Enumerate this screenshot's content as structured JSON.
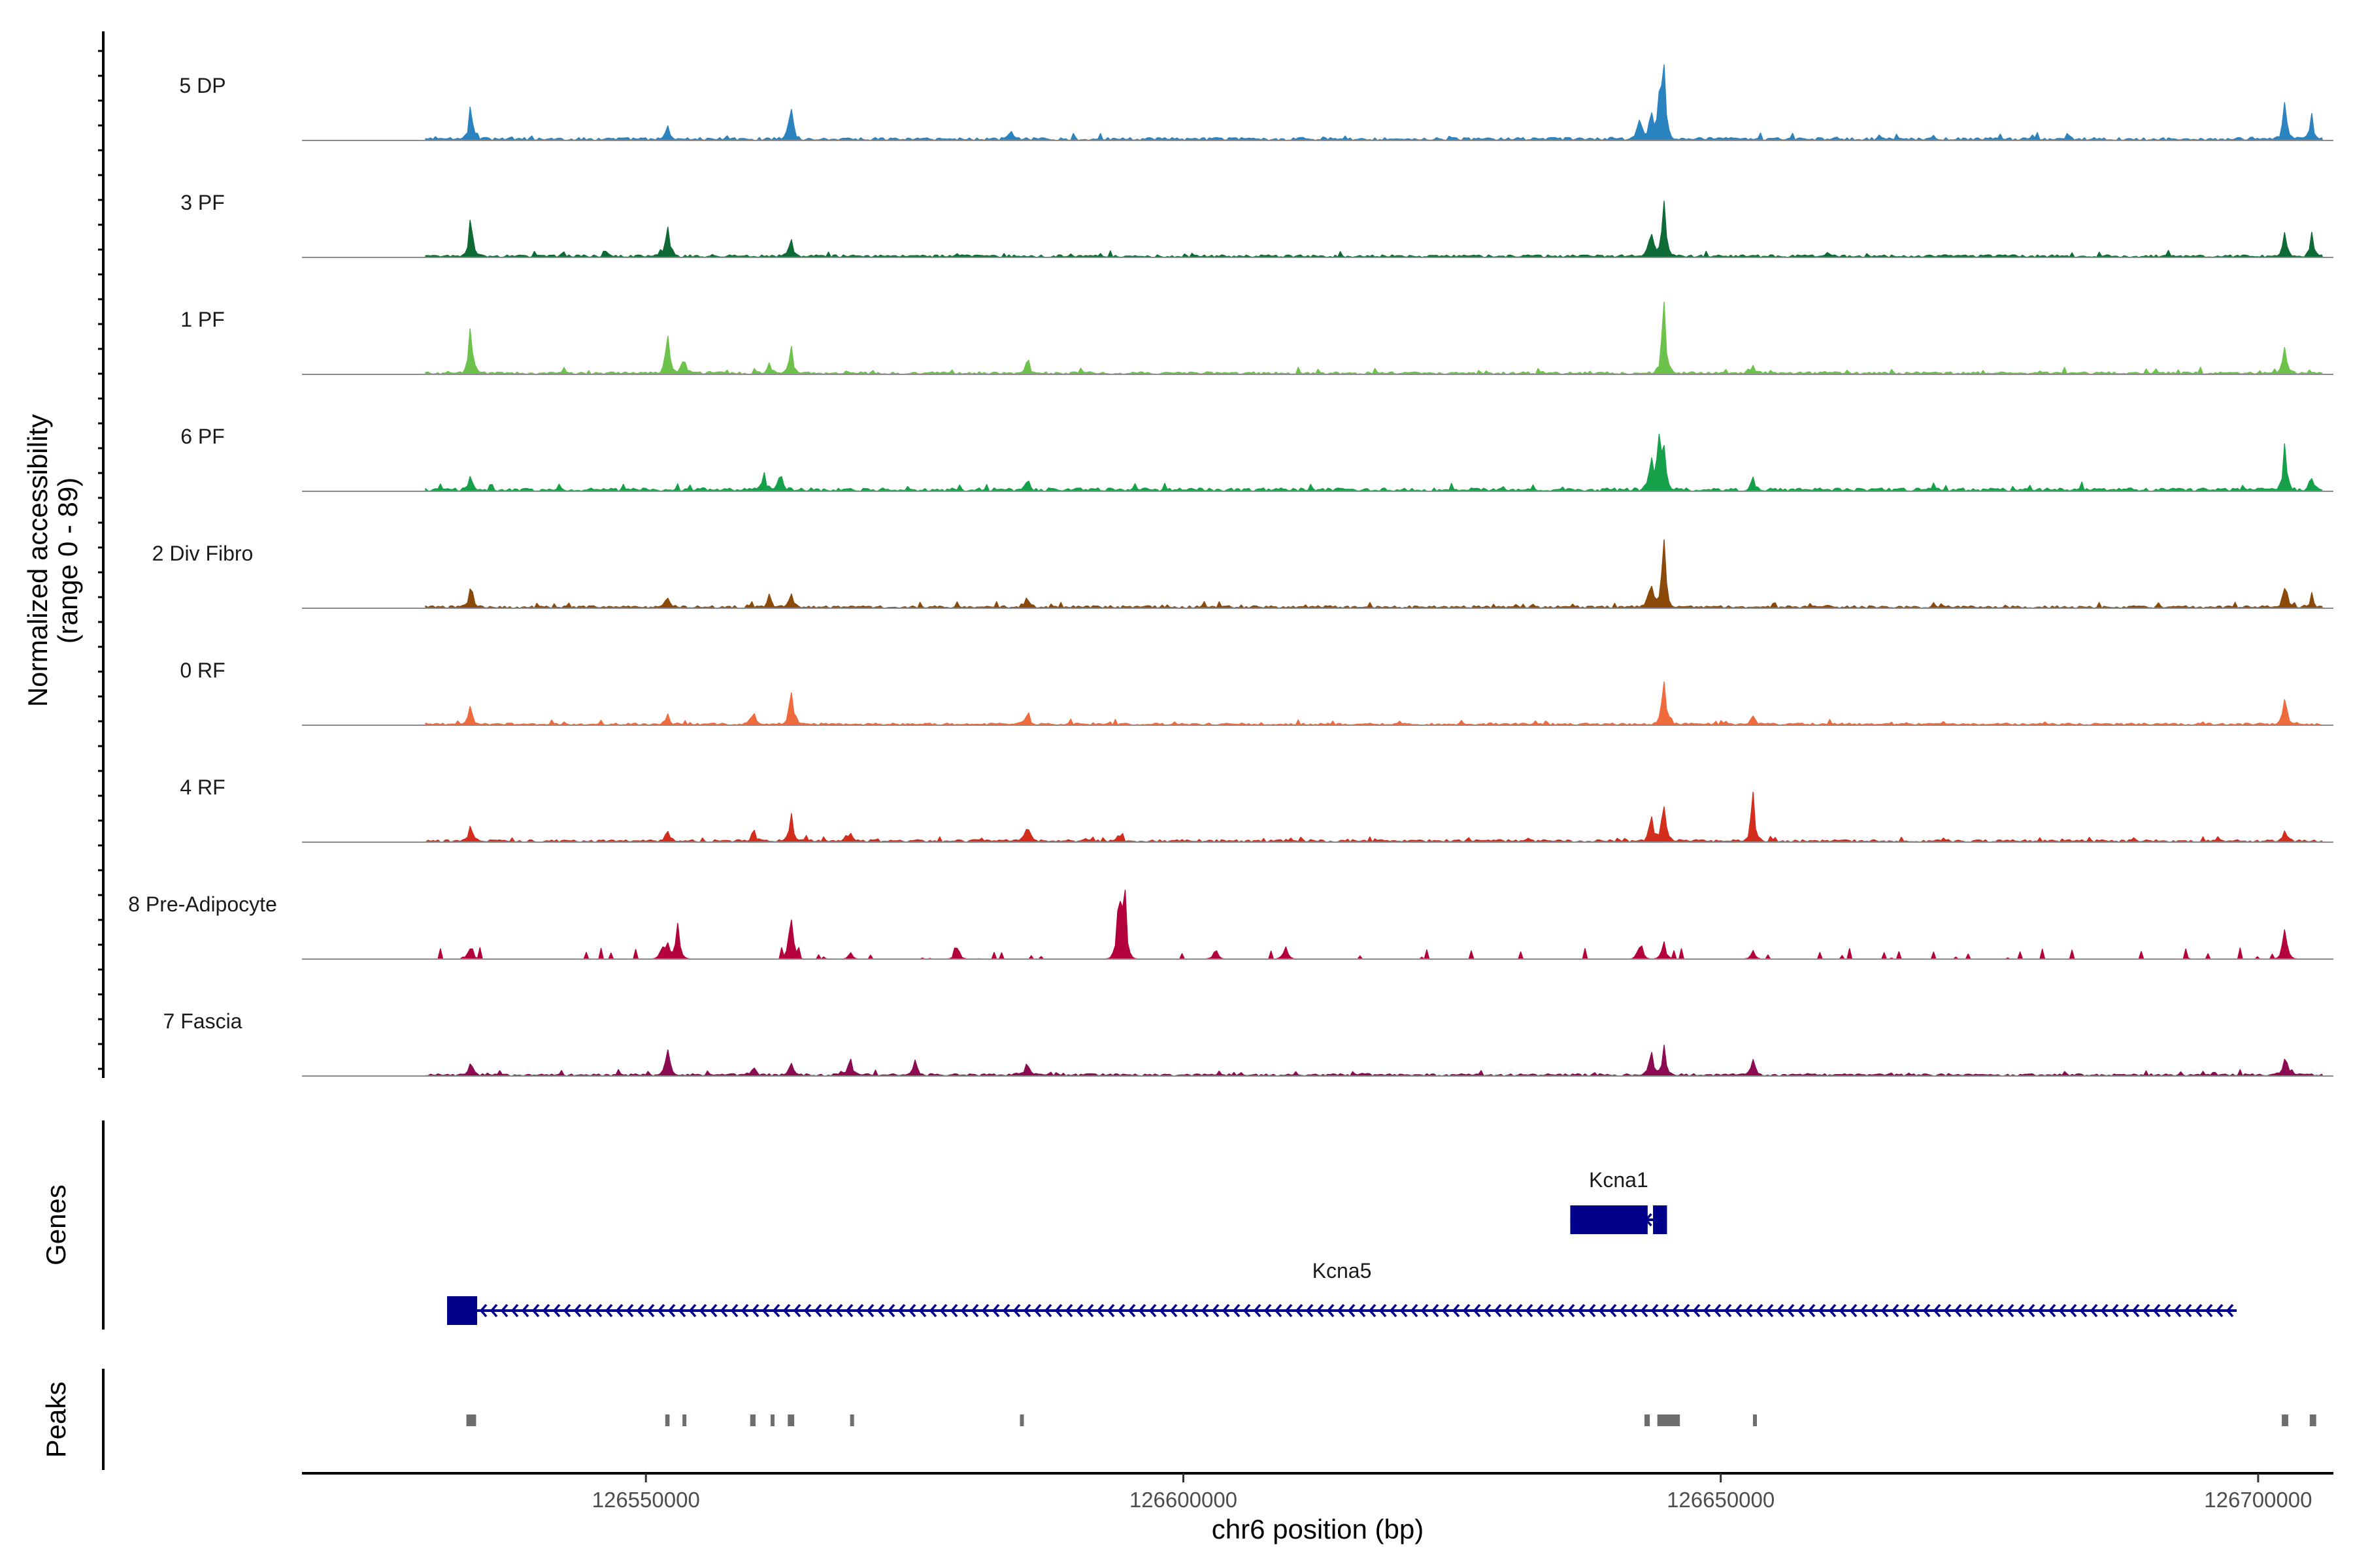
{
  "chart_data": {
    "type": "area",
    "chromosome": "chr6",
    "xlim": [
      126518000,
      126707000
    ],
    "x_ticks": [
      126550000,
      126600000,
      126650000,
      126700000
    ],
    "x_tick_labels": [
      "126550000",
      "126600000",
      "126650000",
      "126700000"
    ],
    "xlabel": "chr6 position (bp)",
    "ylabel_line1": "Normalized accessibility",
    "ylabel_line2": "(range 0 - 89)",
    "ylim": [
      0,
      89
    ],
    "genes_label": "Genes",
    "peaks_label": "Peaks",
    "tracks": [
      {
        "name": "5 DP",
        "color": "#2b83c0",
        "base": 0.7,
        "peaks": [
          [
            126533700,
            0.55
          ],
          [
            126552000,
            0.2
          ],
          [
            126563500,
            0.6
          ],
          [
            126584000,
            0.12
          ],
          [
            126642500,
            0.4
          ],
          [
            126643500,
            0.5
          ],
          [
            126644300,
            0.6
          ],
          [
            126644700,
            1.0
          ],
          [
            126702500,
            0.45
          ],
          [
            126705000,
            0.3
          ]
        ]
      },
      {
        "name": "3 PF",
        "color": "#0e6b36",
        "base": 0.6,
        "peaks": [
          [
            126533700,
            0.5
          ],
          [
            126552000,
            0.38
          ],
          [
            126563500,
            0.35
          ],
          [
            126643500,
            0.45
          ],
          [
            126644700,
            0.78
          ],
          [
            126702500,
            0.33
          ],
          [
            126705000,
            0.28
          ]
        ]
      },
      {
        "name": "1 PF",
        "color": "#6cc24a",
        "base": 0.6,
        "peaks": [
          [
            126533700,
            0.75
          ],
          [
            126552000,
            0.63
          ],
          [
            126553500,
            0.25
          ],
          [
            126561500,
            0.15
          ],
          [
            126563500,
            0.4
          ],
          [
            126585500,
            0.2
          ],
          [
            126644700,
            0.95
          ],
          [
            126653000,
            0.12
          ],
          [
            126702500,
            0.45
          ]
        ]
      },
      {
        "name": "6 PF",
        "color": "#17a04a",
        "base": 0.8,
        "peaks": [
          [
            126533700,
            0.2
          ],
          [
            126561000,
            0.22
          ],
          [
            126562500,
            0.25
          ],
          [
            126585500,
            0.2
          ],
          [
            126643500,
            0.5
          ],
          [
            126644200,
            0.8
          ],
          [
            126644700,
            0.75
          ],
          [
            126653000,
            0.15
          ],
          [
            126702500,
            0.58
          ],
          [
            126705000,
            0.2
          ]
        ]
      },
      {
        "name": "2 Div Fibro",
        "color": "#8b4a0a",
        "base": 0.6,
        "peaks": [
          [
            126533700,
            0.37
          ],
          [
            126552000,
            0.18
          ],
          [
            126561500,
            0.2
          ],
          [
            126563500,
            0.25
          ],
          [
            126585500,
            0.15
          ],
          [
            126643500,
            0.5
          ],
          [
            126644700,
            1.0
          ],
          [
            126702500,
            0.38
          ],
          [
            126705000,
            0.15
          ]
        ]
      },
      {
        "name": "0 RF",
        "color": "#ef6a3d",
        "base": 0.5,
        "peaks": [
          [
            126533700,
            0.28
          ],
          [
            126552000,
            0.15
          ],
          [
            126560000,
            0.2
          ],
          [
            126563500,
            0.55
          ],
          [
            126585500,
            0.2
          ],
          [
            126644700,
            0.65
          ],
          [
            126653000,
            0.15
          ],
          [
            126702500,
            0.4
          ]
        ]
      },
      {
        "name": "4 RF",
        "color": "#d32d1e",
        "base": 0.6,
        "peaks": [
          [
            126533700,
            0.2
          ],
          [
            126552000,
            0.2
          ],
          [
            126560000,
            0.2
          ],
          [
            126563500,
            0.38
          ],
          [
            126569000,
            0.16
          ],
          [
            126585500,
            0.3
          ],
          [
            126594000,
            0.1
          ],
          [
            126643500,
            0.4
          ],
          [
            126644700,
            0.6
          ],
          [
            126653000,
            0.7
          ],
          [
            126702500,
            0.18
          ]
        ]
      },
      {
        "name": "8 Pre-Adipocyte",
        "color": "#b3003d",
        "base": 0.15,
        "peaks": [
          [
            126533700,
            0.25
          ],
          [
            126551500,
            0.2
          ],
          [
            126552000,
            0.3
          ],
          [
            126553000,
            0.55
          ],
          [
            126563500,
            0.8
          ],
          [
            126569000,
            0.1
          ],
          [
            126579000,
            0.2
          ],
          [
            126594000,
            1.0
          ],
          [
            126594500,
            0.9
          ],
          [
            126603000,
            0.2
          ],
          [
            126609500,
            0.25
          ],
          [
            126642500,
            0.3
          ],
          [
            126644700,
            0.3
          ],
          [
            126653000,
            0.12
          ],
          [
            126702500,
            0.6
          ]
        ]
      },
      {
        "name": "7 Fascia",
        "color": "#8c0b53",
        "base": 0.55,
        "peaks": [
          [
            126533700,
            0.2
          ],
          [
            126552000,
            0.35
          ],
          [
            126560000,
            0.15
          ],
          [
            126563500,
            0.2
          ],
          [
            126569000,
            0.25
          ],
          [
            126575000,
            0.2
          ],
          [
            126585500,
            0.2
          ],
          [
            126643500,
            0.35
          ],
          [
            126644700,
            0.4
          ],
          [
            126653000,
            0.25
          ],
          [
            126702500,
            0.3
          ]
        ]
      }
    ],
    "genes": [
      {
        "name": "Kcna1",
        "start": 126636000,
        "end": 126645000,
        "strand": "-",
        "exons": [
          [
            126636000,
            126643200
          ],
          [
            126643700,
            126645000
          ]
        ],
        "color": "#00008b"
      },
      {
        "name": "Kcna5",
        "start": 126531500,
        "end": 126698000,
        "strand": "-",
        "exons": [
          [
            126531500,
            126534300
          ]
        ],
        "color": "#00008b"
      }
    ],
    "peak_regions": [
      [
        126533300,
        126534200
      ],
      [
        126551800,
        126552200
      ],
      [
        126553400,
        126553700
      ],
      [
        126559700,
        126560200
      ],
      [
        126561600,
        126561900
      ],
      [
        126563200,
        126563800
      ],
      [
        126569000,
        126569300
      ],
      [
        126584800,
        126585100
      ],
      [
        126642900,
        126643400
      ],
      [
        126644100,
        126646200
      ],
      [
        126653000,
        126653300
      ],
      [
        126702200,
        126702800
      ],
      [
        126704800,
        126705400
      ]
    ]
  }
}
